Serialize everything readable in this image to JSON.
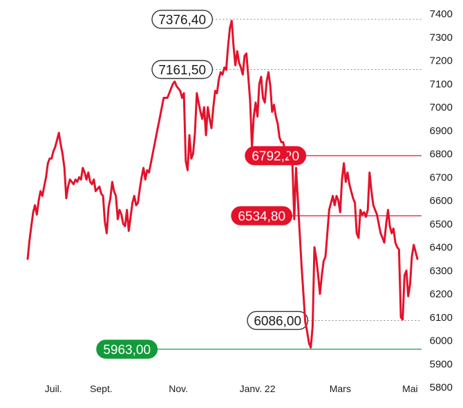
{
  "colors": {
    "line": "#e3122b",
    "support": "#139a3a",
    "reference": "#888888",
    "label_outline": "#333333"
  },
  "chart_data": {
    "type": "line",
    "title": "",
    "xlabel": "",
    "ylabel": "",
    "ylim": [
      5800,
      7400
    ],
    "y_ticks": [
      "7400",
      "7300",
      "7200",
      "7100",
      "7000",
      "6900",
      "6800",
      "6700",
      "6600",
      "6500",
      "6400",
      "6300",
      "6200",
      "6100",
      "6000",
      "5900",
      "5800"
    ],
    "x_ticks": [
      {
        "label": "Juil.",
        "i": 14
      },
      {
        "label": "Sept.",
        "i": 40
      },
      {
        "label": "Nov.",
        "i": 82
      },
      {
        "label": "Janv. 22",
        "i": 125
      },
      {
        "label": "Mars",
        "i": 170
      },
      {
        "label": "Mai",
        "i": 208
      }
    ],
    "grid": false,
    "n_points": 216,
    "series": [
      {
        "values": [
          6350,
          6430,
          6490,
          6550,
          6580,
          6540,
          6600,
          6640,
          6620,
          6660,
          6700,
          6760,
          6780,
          6780,
          6810,
          6830,
          6860,
          6890,
          6840,
          6800,
          6740,
          6610,
          6660,
          6690,
          6680,
          6670,
          6690,
          6680,
          6700,
          6690,
          6740,
          6720,
          6690,
          6720,
          6680,
          6670,
          6690,
          6640,
          6650,
          6660,
          6630,
          6620,
          6510,
          6460,
          6570,
          6610,
          6680,
          6640,
          6620,
          6520,
          6560,
          6540,
          6500,
          6490,
          6560,
          6470,
          6530,
          6590,
          6620,
          6580,
          6590,
          6650,
          6700,
          6740,
          6690,
          6730,
          6720,
          6760,
          6800,
          6840,
          6880,
          6920,
          6960,
          7000,
          7040,
          7040,
          7040,
          7060,
          7080,
          7100,
          7110,
          7090,
          7080,
          7070,
          7040,
          7060,
          6770,
          6730,
          6880,
          6780,
          6800,
          6890,
          7060,
          7020,
          6980,
          6950,
          7000,
          6880,
          7000,
          6950,
          6910,
          7000,
          7070,
          7060,
          7120,
          7150,
          7140,
          7170,
          7160,
          7260,
          7340,
          7370,
          7260,
          7180,
          7240,
          7190,
          7170,
          7140,
          7220,
          7230,
          7130,
          7030,
          6830,
          6960,
          7020,
          6960,
          7100,
          7130,
          7040,
          7020,
          7110,
          7150,
          7090,
          6980,
          7010,
          6960,
          6930,
          6870,
          6850,
          6850,
          6810,
          6800,
          6790,
          6770,
          6760,
          6520,
          6740,
          6600,
          6460,
          6320,
          6200,
          6080,
          6040,
          5990,
          5970,
          6060,
          6400,
          6350,
          6280,
          6200,
          6280,
          6340,
          6360,
          6460,
          6560,
          6590,
          6620,
          6580,
          6620,
          6600,
          6550,
          6690,
          6760,
          6680,
          6720,
          6670,
          6640,
          6610,
          6590,
          6460,
          6440,
          6560,
          6540,
          6550,
          6530,
          6560,
          6720,
          6640,
          6580,
          6560,
          6540,
          6500,
          6460,
          6440,
          6420,
          6500,
          6560,
          6490,
          6460,
          6480,
          6420,
          6400,
          6390,
          6100,
          6090,
          6280,
          6300,
          6190,
          6240,
          6360,
          6410,
          6380,
          6350
        ],
        "stroke_width": 3
      }
    ],
    "levels": [
      {
        "value": 7376.4,
        "label": "7376,40",
        "style": "outline"
      },
      {
        "value": 7161.5,
        "label": "7161,50",
        "style": "outline"
      },
      {
        "value": 6792.2,
        "label": "6792,20",
        "style": "red"
      },
      {
        "value": 6534.8,
        "label": "6534,80",
        "style": "red"
      },
      {
        "value": 6086.0,
        "label": "6086,00",
        "style": "outline"
      },
      {
        "value": 5963.0,
        "label": "5963,00",
        "style": "green"
      }
    ]
  }
}
